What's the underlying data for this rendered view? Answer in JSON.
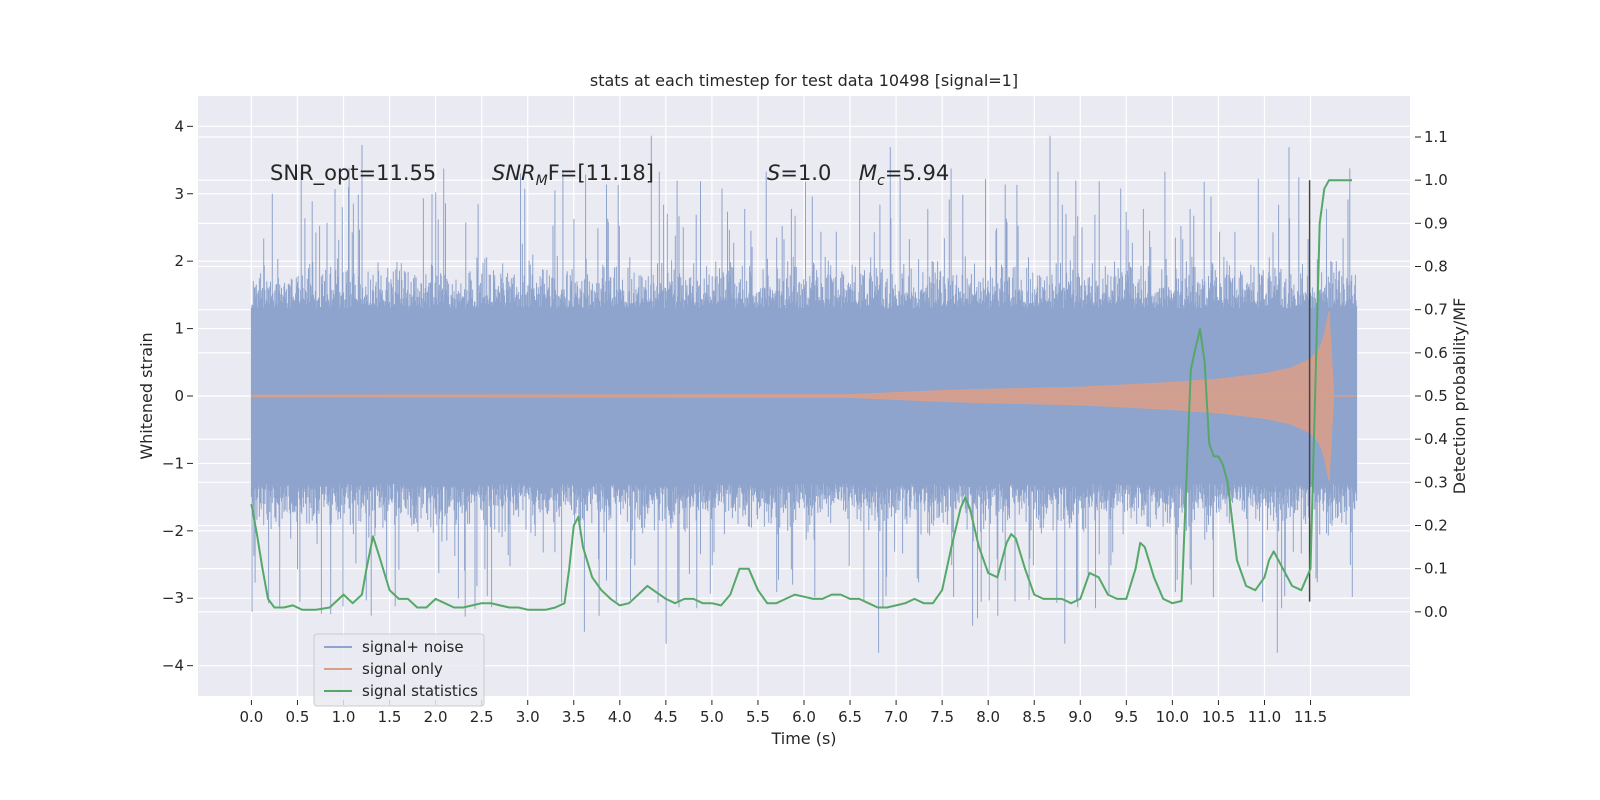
{
  "chart_data": {
    "type": "line",
    "title": "stats at each timestep for test data 10498 [signal=1]",
    "xlabel": "Time (s)",
    "ylabel_left": "Whitened strain",
    "ylabel_right": "Detection probability/MF",
    "xlim": [
      -0.58,
      12.58
    ],
    "ylim_left": [
      -4.45,
      4.45
    ],
    "ylim_right": [
      -0.195,
      1.195
    ],
    "x_ticks": [
      "0.0",
      "0.5",
      "1.0",
      "1.5",
      "2.0",
      "2.5",
      "3.0",
      "3.5",
      "4.0",
      "4.5",
      "5.0",
      "5.5",
      "6.0",
      "6.5",
      "7.0",
      "7.5",
      "8.0",
      "8.5",
      "9.0",
      "9.5",
      "10.0",
      "10.5",
      "11.0",
      "11.5"
    ],
    "y_ticks_left": [
      "4",
      "3",
      "2",
      "1",
      "0",
      "−1",
      "−2",
      "−3",
      "−4"
    ],
    "y_ticks_right": [
      "1.1",
      "1.0",
      "0.9",
      "0.8",
      "0.7",
      "0.6",
      "0.5",
      "0.4",
      "0.3",
      "0.2",
      "0.1",
      "0.0"
    ],
    "grid": true,
    "legend_position": "lower-left",
    "colors": {
      "background": "#eaeaf2",
      "grid": "#ffffff",
      "signal_noise": "#8fa4cc",
      "signal_only": "#d89f8b",
      "signal_statistics": "#55a868",
      "marker": "#444444"
    },
    "annotations": {
      "snr_opt": "SNR_opt=11.55",
      "snr_mf_main": "SNR",
      "snr_mf_sub": "M",
      "snr_mf_rest": "F=[11.18]",
      "s_italic": "S",
      "s_rest": "=1.0",
      "mc_main": "M",
      "mc_sub": "c",
      "mc_rest": "=5.94"
    },
    "series": [
      {
        "name": "signal+ noise",
        "axis": "left",
        "description_values": {
          "t_start": 0.0,
          "t_end": 12.0,
          "core_band": 1.3,
          "typical_peak": 2.5,
          "max_peak": 4.1,
          "min_trough": -3.95
        }
      },
      {
        "name": "signal only",
        "axis": "left",
        "envelope": {
          "t": [
            0.0,
            6.5,
            7.0,
            7.5,
            8.0,
            9.0,
            10.0,
            10.5,
            11.0,
            11.3,
            11.5,
            11.6,
            11.65,
            11.7,
            11.75
          ],
          "amp": [
            0.01,
            0.02,
            0.05,
            0.08,
            0.1,
            0.13,
            0.2,
            0.25,
            0.33,
            0.42,
            0.55,
            0.7,
            0.9,
            1.25,
            0.0
          ]
        }
      },
      {
        "name": "signal statistics",
        "axis": "right",
        "x": [
          0.0,
          0.06,
          0.12,
          0.18,
          0.25,
          0.35,
          0.45,
          0.55,
          0.7,
          0.85,
          1.0,
          1.1,
          1.2,
          1.25,
          1.32,
          1.4,
          1.5,
          1.6,
          1.7,
          1.8,
          1.9,
          2.0,
          2.1,
          2.2,
          2.3,
          2.4,
          2.5,
          2.6,
          2.7,
          2.8,
          2.9,
          3.0,
          3.1,
          3.2,
          3.3,
          3.4,
          3.45,
          3.5,
          3.55,
          3.6,
          3.7,
          3.8,
          3.9,
          4.0,
          4.1,
          4.2,
          4.3,
          4.4,
          4.5,
          4.6,
          4.7,
          4.8,
          4.9,
          5.0,
          5.1,
          5.2,
          5.3,
          5.4,
          5.5,
          5.6,
          5.7,
          5.8,
          5.9,
          6.0,
          6.1,
          6.2,
          6.3,
          6.4,
          6.5,
          6.6,
          6.7,
          6.8,
          6.9,
          7.0,
          7.1,
          7.2,
          7.3,
          7.4,
          7.5,
          7.6,
          7.7,
          7.75,
          7.8,
          7.9,
          8.0,
          8.1,
          8.2,
          8.25,
          8.3,
          8.4,
          8.5,
          8.6,
          8.7,
          8.8,
          8.9,
          9.0,
          9.1,
          9.2,
          9.3,
          9.4,
          9.5,
          9.6,
          9.65,
          9.7,
          9.8,
          9.9,
          10.0,
          10.1,
          10.2,
          10.25,
          10.3,
          10.35,
          10.4,
          10.45,
          10.5,
          10.55,
          10.6,
          10.7,
          10.8,
          10.9,
          11.0,
          11.05,
          11.1,
          11.2,
          11.3,
          11.4,
          11.5,
          11.55,
          11.6,
          11.65,
          11.7,
          11.8,
          11.9,
          11.95
        ],
        "y": [
          0.25,
          0.18,
          0.1,
          0.03,
          0.01,
          0.01,
          0.015,
          0.005,
          0.005,
          0.01,
          0.04,
          0.02,
          0.04,
          0.1,
          0.175,
          0.12,
          0.05,
          0.03,
          0.03,
          0.01,
          0.01,
          0.03,
          0.02,
          0.01,
          0.01,
          0.015,
          0.02,
          0.02,
          0.015,
          0.01,
          0.01,
          0.005,
          0.005,
          0.005,
          0.01,
          0.02,
          0.1,
          0.2,
          0.22,
          0.15,
          0.08,
          0.05,
          0.03,
          0.015,
          0.02,
          0.04,
          0.06,
          0.045,
          0.03,
          0.02,
          0.03,
          0.03,
          0.02,
          0.02,
          0.015,
          0.04,
          0.1,
          0.1,
          0.05,
          0.02,
          0.02,
          0.03,
          0.04,
          0.035,
          0.03,
          0.03,
          0.04,
          0.04,
          0.03,
          0.03,
          0.02,
          0.01,
          0.01,
          0.015,
          0.02,
          0.03,
          0.02,
          0.02,
          0.05,
          0.15,
          0.24,
          0.265,
          0.24,
          0.15,
          0.09,
          0.08,
          0.16,
          0.18,
          0.17,
          0.1,
          0.04,
          0.03,
          0.03,
          0.03,
          0.02,
          0.03,
          0.09,
          0.08,
          0.04,
          0.03,
          0.03,
          0.1,
          0.16,
          0.15,
          0.08,
          0.03,
          0.02,
          0.025,
          0.56,
          0.61,
          0.655,
          0.58,
          0.39,
          0.36,
          0.36,
          0.34,
          0.3,
          0.12,
          0.06,
          0.05,
          0.08,
          0.12,
          0.14,
          0.1,
          0.06,
          0.05,
          0.1,
          0.5,
          0.9,
          0.98,
          1.0,
          1.0,
          1.0,
          1.0
        ],
        "marker_line": {
          "x": 11.49,
          "y_left": [
            -3.05,
            3.2
          ]
        }
      }
    ]
  }
}
